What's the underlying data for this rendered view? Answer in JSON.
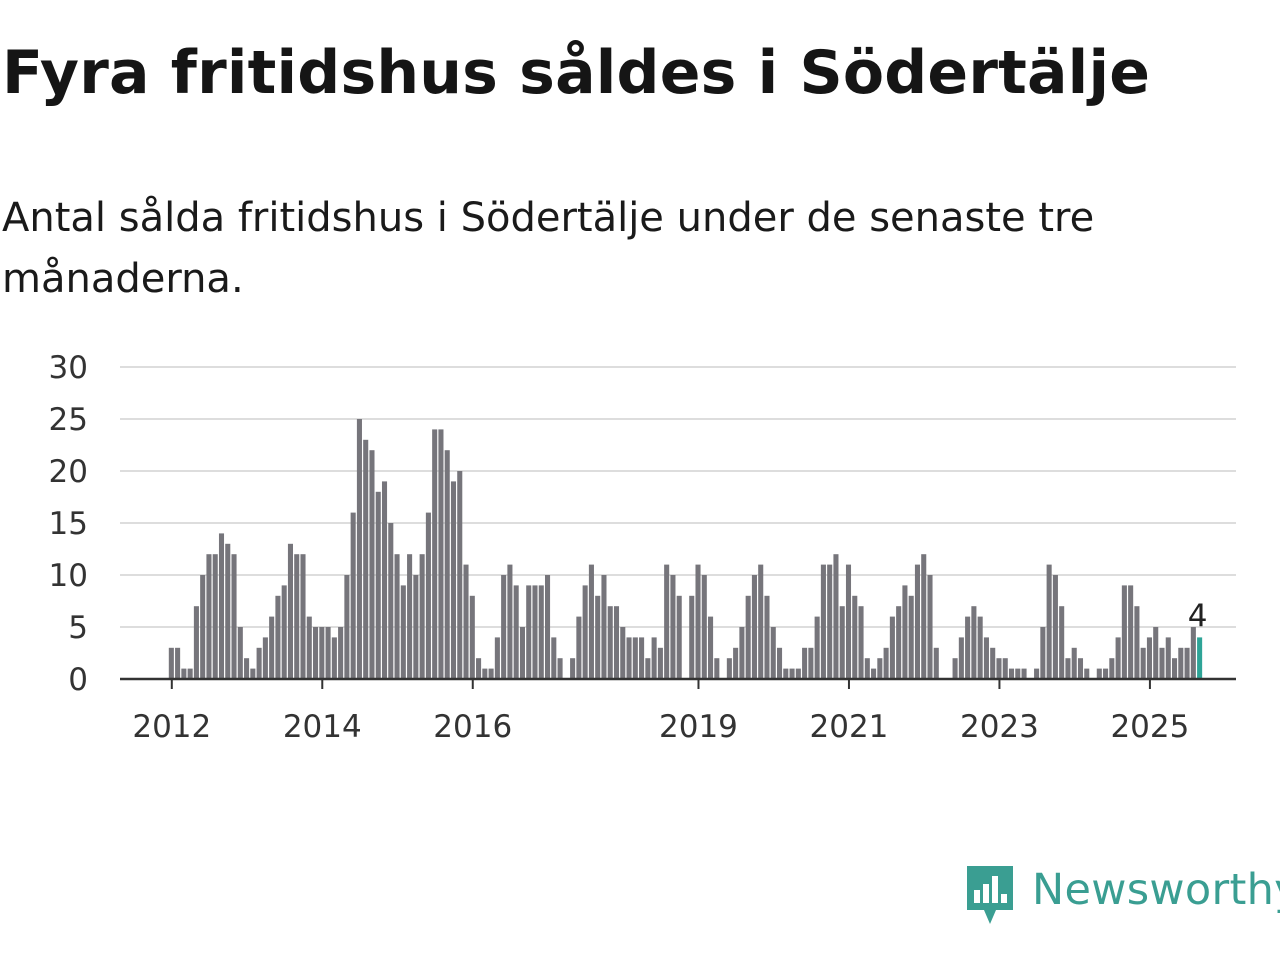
{
  "title": "Fyra fritidshus såldes i Södertälje",
  "subtitle": "Antal sålda fritidshus i Södertälje under de senaste tre månaderna.",
  "brand": {
    "name": "Newsworthy",
    "color": "#3a9e92",
    "icon": "chart-speech-bubble-icon"
  },
  "colors": {
    "bar": "#76757b",
    "highlight": "#2ea497",
    "grid": "#dddddd",
    "axis": "#333333"
  },
  "chart_data": {
    "type": "bar",
    "title": "Fyra fritidshus såldes i Södertälje",
    "subtitle": "Antal sålda fritidshus i Södertälje under de senaste tre månaderna.",
    "xlabel": "",
    "ylabel": "",
    "ylim": [
      0,
      30
    ],
    "yticks": [
      0,
      5,
      10,
      15,
      20,
      25,
      30
    ],
    "xticks": [
      "2012",
      "2014",
      "2016",
      "2019",
      "2021",
      "2023",
      "2025"
    ],
    "x_start": "2012-01",
    "x_end": "2025-05",
    "frequency": "monthly",
    "grid": true,
    "values": [
      3,
      3,
      1,
      1,
      7,
      10,
      12,
      12,
      14,
      13,
      12,
      5,
      2,
      1,
      3,
      4,
      6,
      8,
      9,
      13,
      12,
      12,
      6,
      5,
      5,
      5,
      4,
      5,
      10,
      16,
      25,
      23,
      22,
      18,
      19,
      15,
      12,
      9,
      12,
      10,
      12,
      16,
      24,
      24,
      22,
      19,
      20,
      11,
      8,
      2,
      1,
      1,
      4,
      10,
      11,
      9,
      5,
      9,
      9,
      9,
      10,
      4,
      2,
      0,
      2,
      6,
      9,
      11,
      8,
      10,
      7,
      7,
      5,
      4,
      4,
      4,
      2,
      4,
      3,
      11,
      10,
      8,
      0,
      8,
      11,
      10,
      6,
      2,
      0,
      2,
      3,
      5,
      8,
      10,
      11,
      8,
      5,
      3,
      1,
      1,
      1,
      3,
      3,
      6,
      11,
      11,
      12,
      7,
      11,
      8,
      7,
      2,
      1,
      2,
      3,
      6,
      7,
      9,
      8,
      11,
      12,
      10,
      3,
      0,
      0,
      2,
      4,
      6,
      7,
      6,
      4,
      3,
      2,
      2,
      1,
      1,
      1,
      0,
      1,
      5,
      11,
      10,
      7,
      2,
      3,
      2,
      1,
      0,
      1,
      1,
      2,
      4,
      9,
      9,
      7,
      3,
      4,
      5,
      3,
      4,
      2,
      3,
      3,
      5,
      4
    ],
    "highlight_last": true,
    "annotation": {
      "text": "4",
      "value": 4,
      "at": "last"
    }
  }
}
